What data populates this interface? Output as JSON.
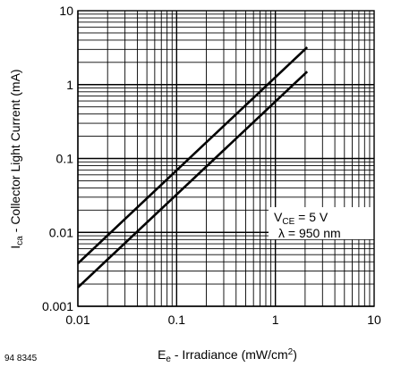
{
  "chart_data": {
    "type": "line",
    "x_scale": "log",
    "y_scale": "log",
    "xlim": [
      0.01,
      10
    ],
    "ylim": [
      0.001,
      10
    ],
    "grid": true,
    "x_tick_labels": [
      "0.01",
      "0.1",
      "1",
      "10"
    ],
    "y_tick_labels": [
      "0.001",
      "0.01",
      "0.1",
      "1",
      "10"
    ],
    "xlabel": {
      "main": "E",
      "sub": "e",
      "rest": " - Irradiance (mW/cm",
      "sup": "2",
      "end": ")"
    },
    "ylabel": {
      "main": "I",
      "sub": "ca",
      "rest": " - Collector Light Current (mA)"
    },
    "annotation": {
      "line1": {
        "main": "V",
        "sub": "CE",
        "rest": " = 5 V"
      },
      "line2": "λ = 950 nm"
    },
    "figure_id": "94 8345",
    "series": [
      {
        "x": [
          0.01,
          2.1
        ],
        "y": [
          0.0038,
          3.2
        ]
      },
      {
        "x": [
          0.01,
          2.1
        ],
        "y": [
          0.0018,
          1.5
        ]
      }
    ]
  }
}
